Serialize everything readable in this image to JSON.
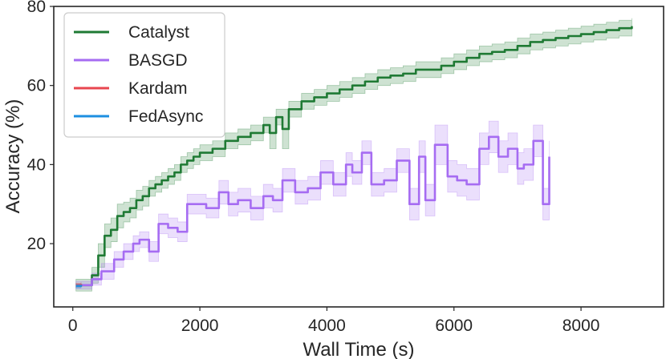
{
  "chart_data": {
    "type": "line",
    "title": "",
    "xlabel": "Wall Time (s)",
    "ylabel": "Accuracy (%)",
    "xlim": [
      -300,
      9300
    ],
    "ylim": [
      4,
      80
    ],
    "xticks": [
      0,
      2000,
      4000,
      6000,
      8000
    ],
    "yticks": [
      20,
      40,
      60,
      80
    ],
    "grid": false,
    "legend_position": "top-left",
    "series": [
      {
        "name": "Catalyst",
        "color": "#1f7a34",
        "band_color": "#1f7a34",
        "x": [
          50,
          300,
          400,
          500,
          600,
          700,
          800,
          900,
          1000,
          1100,
          1200,
          1300,
          1400,
          1500,
          1600,
          1700,
          1800,
          1900,
          2000,
          2200,
          2400,
          2600,
          2800,
          3000,
          3100,
          3200,
          3300,
          3400,
          3500,
          3600,
          3800,
          4000,
          4200,
          4400,
          4600,
          4800,
          5000,
          5200,
          5400,
          5600,
          5800,
          6000,
          6200,
          6400,
          6600,
          6800,
          7000,
          7200,
          7400,
          7600,
          7800,
          8000,
          8200,
          8400,
          8600,
          8800
        ],
        "y": [
          9.5,
          12,
          17,
          22,
          23.5,
          27,
          28,
          29,
          31,
          32,
          34,
          35,
          36,
          37,
          38,
          40,
          41,
          42,
          43,
          44,
          46,
          47,
          48,
          50,
          48,
          52,
          49,
          54,
          54,
          56,
          57,
          58,
          59,
          60,
          61,
          62,
          62.5,
          63,
          64,
          64,
          65,
          66,
          67,
          68,
          68.5,
          69,
          70,
          71,
          71.5,
          72,
          72.5,
          73,
          73.5,
          74,
          74.5,
          75
        ],
        "band": [
          1.5,
          2,
          3,
          3,
          3,
          3,
          2.5,
          2.5,
          2.5,
          2.5,
          2,
          2,
          2,
          2,
          2,
          2,
          2,
          2,
          2,
          2,
          2,
          2,
          2,
          2,
          4,
          2,
          5,
          2,
          2,
          2,
          2,
          2,
          2,
          2,
          2,
          2,
          2,
          2,
          2,
          2,
          2,
          2,
          2,
          2,
          2,
          2,
          2,
          2,
          2,
          2,
          2,
          2,
          2,
          2,
          2,
          2
        ]
      },
      {
        "name": "BASGD",
        "color": "#a66cf2",
        "band_color": "#a66cf2",
        "x": [
          50,
          300,
          450,
          650,
          800,
          950,
          1050,
          1200,
          1350,
          1500,
          1650,
          1800,
          1900,
          2100,
          2300,
          2450,
          2600,
          2800,
          3000,
          3150,
          3300,
          3500,
          3700,
          3900,
          4100,
          4300,
          4400,
          4550,
          4700,
          4900,
          5100,
          5300,
          5450,
          5550,
          5700,
          5900,
          6050,
          6200,
          6400,
          6550,
          6700,
          6850,
          7000,
          7100,
          7250,
          7400,
          7500
        ],
        "y": [
          9.5,
          11,
          13,
          16,
          18,
          20,
          21,
          18,
          25,
          24,
          23,
          30,
          30,
          29,
          33,
          30,
          31,
          29,
          32,
          31,
          36,
          33,
          34,
          38,
          35,
          40,
          38,
          43,
          35,
          36,
          41,
          30,
          42,
          31,
          45,
          37,
          36,
          35,
          44,
          47,
          42,
          44,
          39,
          40,
          46,
          30,
          42
        ],
        "band": [
          1,
          1.5,
          2,
          2,
          2,
          2,
          2,
          2.5,
          2.5,
          2.5,
          2.5,
          2.5,
          2.5,
          2.5,
          3,
          3,
          3,
          3,
          3,
          3,
          3,
          3,
          3,
          3,
          3,
          3,
          3,
          3,
          3,
          3,
          3,
          4,
          4,
          4,
          5,
          4,
          4,
          4,
          4,
          4,
          4,
          4,
          4,
          4,
          4,
          4,
          4
        ]
      },
      {
        "name": "Kardam",
        "color": "#e8464f",
        "band_color": "#e8464f",
        "x": [
          50,
          130
        ],
        "y": [
          9.5,
          9.8
        ],
        "band": [
          0.5,
          0.5
        ]
      },
      {
        "name": "FedAsync",
        "color": "#1d8fe1",
        "band_color": "#1d8fe1",
        "x": [
          50,
          130
        ],
        "y": [
          9.3,
          9.6
        ],
        "band": [
          0.5,
          0.5
        ]
      }
    ]
  }
}
